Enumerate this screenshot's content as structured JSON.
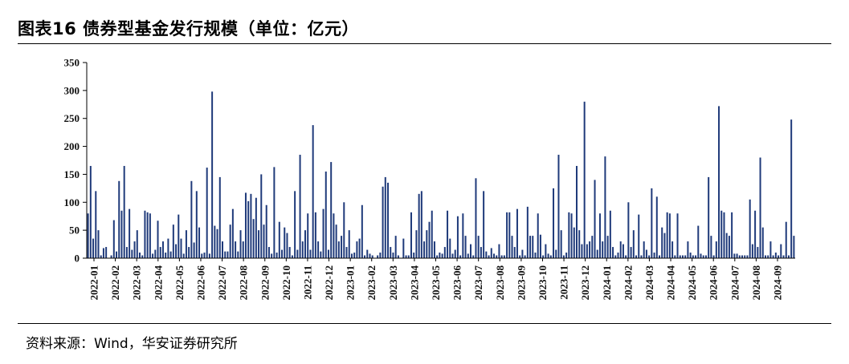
{
  "header": {
    "title": "图表16 债券型基金发行规模（单位：亿元）"
  },
  "footer": {
    "source": "资料来源：Wind，华安证券研究所"
  },
  "chart_data": {
    "type": "bar",
    "title": "图表16 债券型基金发行规模（单位：亿元）",
    "xlabel": "",
    "ylabel": "",
    "ylim": [
      0,
      350
    ],
    "yticks": [
      0,
      50,
      100,
      150,
      200,
      250,
      300,
      350
    ],
    "grid": false,
    "bar_color": "#1f3a7a",
    "x_tick_labels": [
      "2022-01",
      "2022-02",
      "2022-03",
      "2022-04",
      "2022-05",
      "2022-06",
      "2022-07",
      "2022-08",
      "2022-09",
      "2022-10",
      "2022-11",
      "2022-12",
      "2023-01",
      "2023-02",
      "2023-03",
      "2023-04",
      "2023-05",
      "2023-06",
      "2023-07",
      "2023-08",
      "2023-09",
      "2023-10",
      "2023-11",
      "2023-12",
      "2024-01",
      "2024-02",
      "2024-03",
      "2024-04",
      "2024-05",
      "2024-06",
      "2024-07",
      "2024-08",
      "2024-09"
    ],
    "values": [
      80,
      165,
      35,
      120,
      50,
      5,
      18,
      20,
      0,
      5,
      68,
      12,
      138,
      85,
      165,
      20,
      88,
      15,
      30,
      50,
      10,
      5,
      85,
      82,
      80,
      8,
      15,
      67,
      20,
      30,
      10,
      35,
      12,
      60,
      25,
      78,
      35,
      8,
      50,
      20,
      138,
      28,
      120,
      55,
      8,
      10,
      162,
      8,
      298,
      58,
      52,
      145,
      30,
      12,
      12,
      60,
      88,
      30,
      12,
      50,
      30,
      117,
      102,
      115,
      70,
      108,
      50,
      150,
      60,
      95,
      20,
      8,
      163,
      10,
      65,
      15,
      55,
      45,
      20,
      5,
      120,
      15,
      185,
      30,
      50,
      80,
      15,
      238,
      82,
      30,
      12,
      88,
      155,
      15,
      172,
      80,
      60,
      30,
      40,
      100,
      20,
      50,
      8,
      10,
      30,
      35,
      95,
      5,
      15,
      8,
      5,
      0,
      5,
      10,
      128,
      145,
      135,
      20,
      10,
      40,
      5,
      0,
      35,
      5,
      5,
      82,
      10,
      50,
      115,
      120,
      30,
      50,
      65,
      85,
      30,
      5,
      10,
      8,
      20,
      85,
      35,
      8,
      15,
      75,
      5,
      80,
      40,
      8,
      25,
      5,
      143,
      40,
      20,
      120,
      12,
      5,
      18,
      8,
      5,
      25,
      5,
      5,
      82,
      82,
      40,
      20,
      88,
      5,
      15,
      5,
      92,
      40,
      40,
      10,
      80,
      42,
      5,
      25,
      8,
      5,
      125,
      15,
      185,
      50,
      5,
      10,
      82,
      80,
      55,
      165,
      50,
      25,
      280,
      25,
      30,
      40,
      140,
      15,
      80,
      30,
      182,
      40,
      85,
      20,
      5,
      10,
      30,
      25,
      5,
      100,
      20,
      50,
      5,
      78,
      5,
      30,
      15,
      5,
      125,
      10,
      110,
      5,
      55,
      45,
      82,
      80,
      30,
      5,
      80,
      5,
      5,
      5,
      30,
      10,
      5,
      5,
      58,
      8,
      5,
      5,
      145,
      40,
      5,
      30,
      272,
      85,
      82,
      45,
      40,
      82,
      8,
      8,
      5,
      5,
      5,
      5,
      105,
      25,
      85,
      20,
      180,
      55,
      5,
      5,
      30,
      5,
      10,
      5,
      25,
      5,
      65,
      5,
      248,
      40
    ]
  }
}
